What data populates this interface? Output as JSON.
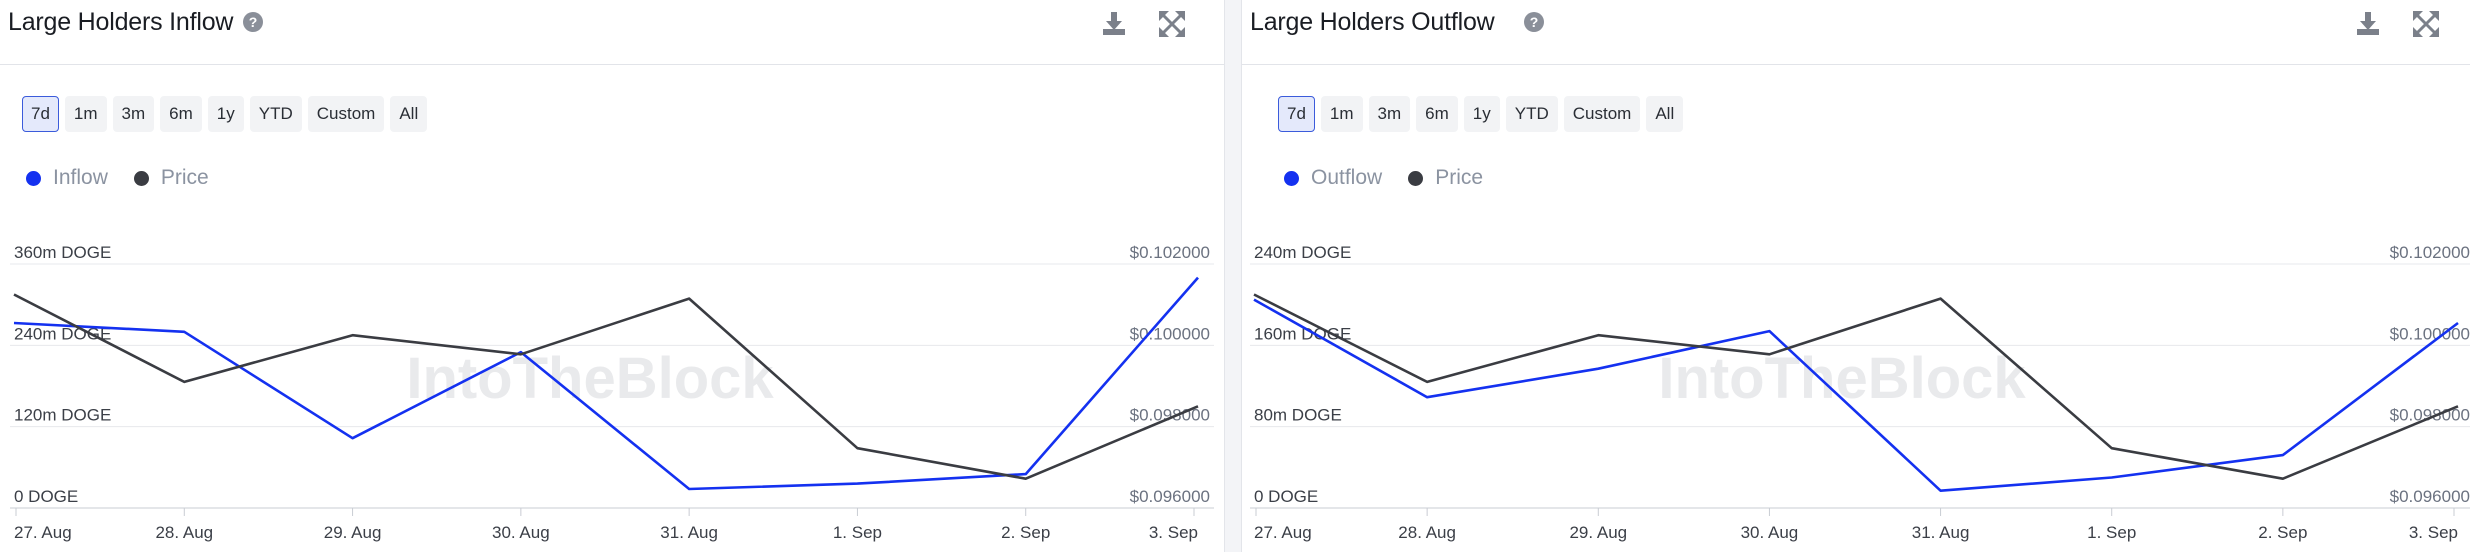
{
  "brand": {
    "watermark": "IntoTheBlock"
  },
  "colors": {
    "inflow": "#1431f0",
    "outflow": "#1431f0",
    "price": "#3a3c42",
    "grid": "#e7e8ec"
  },
  "icons": {
    "help": "question-circle-icon",
    "download": "download-icon",
    "expand": "expand-icon"
  },
  "ranges": [
    "7d",
    "1m",
    "3m",
    "6m",
    "1y",
    "YTD",
    "Custom",
    "All"
  ],
  "active_range": "7d",
  "panels": [
    {
      "title": "Large Holders Inflow",
      "help_glyph": "?",
      "legend": [
        "Inflow",
        "Price"
      ]
    },
    {
      "title": "Large Holders Outflow",
      "help_glyph": "?",
      "legend": [
        "Outflow",
        "Price"
      ]
    }
  ],
  "chart_data": [
    {
      "type": "line",
      "title": "Large Holders Inflow",
      "x": [
        "27. Aug",
        "28. Aug",
        "29. Aug",
        "30. Aug",
        "31. Aug",
        "1. Sep",
        "2. Sep",
        "3. Sep"
      ],
      "y_left_ticks": [
        "0 DOGE",
        "120m DOGE",
        "240m DOGE",
        "360m DOGE"
      ],
      "y_right_ticks": [
        "$0.096000",
        "$0.098000",
        "$0.100000",
        "$0.102000"
      ],
      "ylim_left": [
        0,
        360
      ],
      "ylim_right": [
        0.096,
        0.102
      ],
      "grid": true,
      "legend_position": "top-left",
      "series": [
        {
          "name": "Inflow",
          "axis": "left",
          "unit": "m DOGE",
          "values": [
            273,
            260,
            103,
            230,
            28,
            36,
            50,
            340
          ]
        },
        {
          "name": "Price",
          "axis": "right",
          "unit": "USD",
          "values": [
            0.10125,
            0.0991,
            0.10025,
            0.09978,
            0.10115,
            0.09747,
            0.09672,
            0.0985
          ]
        }
      ]
    },
    {
      "type": "line",
      "title": "Large Holders Outflow",
      "x": [
        "27. Aug",
        "28. Aug",
        "29. Aug",
        "30. Aug",
        "31. Aug",
        "1. Sep",
        "2. Sep",
        "3. Sep"
      ],
      "y_left_ticks": [
        "0 DOGE",
        "80m DOGE",
        "160m DOGE",
        "240m DOGE"
      ],
      "y_right_ticks": [
        "$0.096000",
        "$0.098000",
        "$0.100000",
        "$0.102000"
      ],
      "ylim_left": [
        0,
        240
      ],
      "ylim_right": [
        0.096,
        0.102
      ],
      "grid": true,
      "legend_position": "top-left",
      "series": [
        {
          "name": "Outflow",
          "axis": "left",
          "unit": "m DOGE",
          "values": [
            205,
            109,
            137,
            174,
            17,
            30,
            52,
            182
          ]
        },
        {
          "name": "Price",
          "axis": "right",
          "unit": "USD",
          "values": [
            0.10125,
            0.0991,
            0.10025,
            0.09978,
            0.10115,
            0.09747,
            0.09672,
            0.0985
          ]
        }
      ]
    }
  ]
}
